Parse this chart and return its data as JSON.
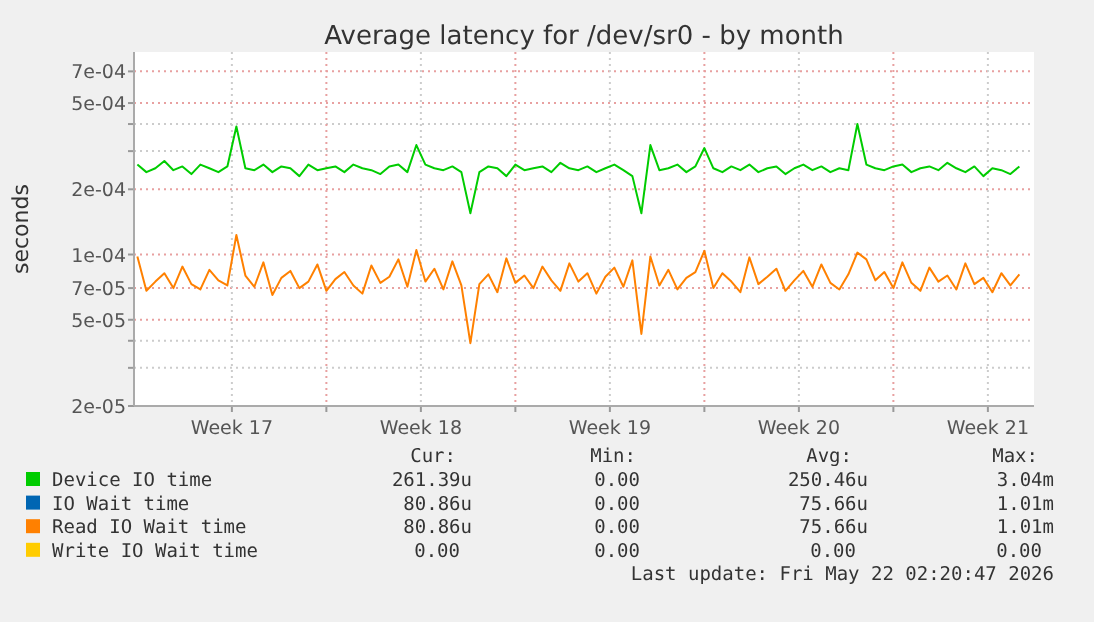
{
  "chart_data": {
    "type": "line",
    "title": "Average latency for /dev/sr0 - by month",
    "ylabel": "seconds",
    "log": true,
    "grid": true,
    "legend": "bottom",
    "marker": "none",
    "line_style": "solid",
    "ylim": [
      2e-05,
      0.00086
    ],
    "yticks": [
      {
        "value": 2e-05,
        "label": "2e-05"
      },
      {
        "value": 3e-05,
        "label": null
      },
      {
        "value": 4e-05,
        "label": null
      },
      {
        "value": 5e-05,
        "label": "5e-05"
      },
      {
        "value": 7e-05,
        "label": "7e-05"
      },
      {
        "value": 0.0001,
        "label": "1e-04"
      },
      {
        "value": 0.0002,
        "label": "2e-04"
      },
      {
        "value": 0.0003,
        "label": null
      },
      {
        "value": 0.0004,
        "label": null
      },
      {
        "value": 0.0005,
        "label": "5e-04"
      },
      {
        "value": 0.0007,
        "label": "7e-04"
      }
    ],
    "xlim": [
      "2026-04-19T21:00",
      "2026-05-23T05:00"
    ],
    "xticks": [
      {
        "value": "2026-04-23T12:00",
        "label": "Week 17"
      },
      {
        "value": "2026-04-27",
        "label": null
      },
      {
        "value": "2026-04-30T12:00",
        "label": "Week 18"
      },
      {
        "value": "2026-05-04",
        "label": null
      },
      {
        "value": "2026-05-07T12:00",
        "label": "Week 19"
      },
      {
        "value": "2026-05-11",
        "label": null
      },
      {
        "value": "2026-05-14T12:00",
        "label": "Week 20"
      },
      {
        "value": "2026-05-18",
        "label": null
      },
      {
        "value": "2026-05-21T12:00",
        "label": "Week 21"
      }
    ],
    "x": [
      "2026-04-20T00:00",
      "2026-04-20T08:00",
      "2026-04-20T16:00",
      "2026-04-21T00:00",
      "2026-04-21T08:00",
      "2026-04-21T16:00",
      "2026-04-22T00:00",
      "2026-04-22T08:00",
      "2026-04-22T16:00",
      "2026-04-23T00:00",
      "2026-04-23T08:00",
      "2026-04-23T16:00",
      "2026-04-24T00:00",
      "2026-04-24T08:00",
      "2026-04-24T16:00",
      "2026-04-25T00:00",
      "2026-04-25T08:00",
      "2026-04-25T16:00",
      "2026-04-26T00:00",
      "2026-04-26T08:00",
      "2026-04-26T16:00",
      "2026-04-27T00:00",
      "2026-04-27T08:00",
      "2026-04-27T16:00",
      "2026-04-28T00:00",
      "2026-04-28T08:00",
      "2026-04-28T16:00",
      "2026-04-29T00:00",
      "2026-04-29T08:00",
      "2026-04-29T16:00",
      "2026-04-30T00:00",
      "2026-04-30T08:00",
      "2026-04-30T16:00",
      "2026-05-01T00:00",
      "2026-05-01T08:00",
      "2026-05-01T16:00",
      "2026-05-02T00:00",
      "2026-05-02T08:00",
      "2026-05-02T16:00",
      "2026-05-03T00:00",
      "2026-05-03T08:00",
      "2026-05-03T16:00",
      "2026-05-04T00:00",
      "2026-05-04T08:00",
      "2026-05-04T16:00",
      "2026-05-05T00:00",
      "2026-05-05T08:00",
      "2026-05-05T16:00",
      "2026-05-06T00:00",
      "2026-05-06T08:00",
      "2026-05-06T16:00",
      "2026-05-07T00:00",
      "2026-05-07T08:00",
      "2026-05-07T16:00",
      "2026-05-08T00:00",
      "2026-05-08T08:00",
      "2026-05-08T16:00",
      "2026-05-09T00:00",
      "2026-05-09T08:00",
      "2026-05-09T16:00",
      "2026-05-10T00:00",
      "2026-05-10T08:00",
      "2026-05-10T16:00",
      "2026-05-11T00:00",
      "2026-05-11T08:00",
      "2026-05-11T16:00",
      "2026-05-12T00:00",
      "2026-05-12T08:00",
      "2026-05-12T16:00",
      "2026-05-13T00:00",
      "2026-05-13T08:00",
      "2026-05-13T16:00",
      "2026-05-14T00:00",
      "2026-05-14T08:00",
      "2026-05-14T16:00",
      "2026-05-15T00:00",
      "2026-05-15T08:00",
      "2026-05-15T16:00",
      "2026-05-16T00:00",
      "2026-05-16T08:00",
      "2026-05-16T16:00",
      "2026-05-17T00:00",
      "2026-05-17T08:00",
      "2026-05-17T16:00",
      "2026-05-18T00:00",
      "2026-05-18T08:00",
      "2026-05-18T16:00",
      "2026-05-19T00:00",
      "2026-05-19T08:00",
      "2026-05-19T16:00",
      "2026-05-20T00:00",
      "2026-05-20T08:00",
      "2026-05-20T16:00",
      "2026-05-21T00:00",
      "2026-05-21T08:00",
      "2026-05-21T16:00",
      "2026-05-22T00:00",
      "2026-05-22T08:00",
      "2026-05-22T16:00"
    ],
    "series": [
      {
        "name": "Device IO time",
        "color": "#00cc00",
        "values": [
          0.00026,
          0.00024,
          0.00025,
          0.00027,
          0.000245,
          0.000255,
          0.000235,
          0.00026,
          0.00025,
          0.00024,
          0.000255,
          0.00039,
          0.00025,
          0.000245,
          0.00026,
          0.00024,
          0.000255,
          0.00025,
          0.00023,
          0.00026,
          0.000245,
          0.00025,
          0.000255,
          0.00024,
          0.00026,
          0.00025,
          0.000245,
          0.000235,
          0.000255,
          0.00026,
          0.00024,
          0.00032,
          0.00026,
          0.00025,
          0.000245,
          0.000255,
          0.00024,
          0.000155,
          0.00024,
          0.000255,
          0.00025,
          0.00023,
          0.00026,
          0.000245,
          0.00025,
          0.000255,
          0.00024,
          0.000265,
          0.00025,
          0.000245,
          0.000255,
          0.00024,
          0.00025,
          0.00026,
          0.000245,
          0.00023,
          0.000155,
          0.00032,
          0.000245,
          0.00025,
          0.00026,
          0.00024,
          0.000255,
          0.00031,
          0.00025,
          0.00024,
          0.000255,
          0.000245,
          0.00026,
          0.00024,
          0.00025,
          0.000255,
          0.000235,
          0.00025,
          0.00026,
          0.000245,
          0.000255,
          0.00024,
          0.00025,
          0.000245,
          0.0004,
          0.00026,
          0.00025,
          0.000245,
          0.000255,
          0.00026,
          0.00024,
          0.00025,
          0.000255,
          0.000245,
          0.000265,
          0.00025,
          0.00024,
          0.000255,
          0.00023,
          0.00025,
          0.000245,
          0.000235,
          0.000255
        ]
      },
      {
        "name": "IO Wait time",
        "color": "#0066b3",
        "values": [
          null,
          null,
          null,
          null,
          null,
          null,
          null,
          null,
          null,
          null,
          null,
          null,
          null,
          null,
          null,
          null,
          null,
          null,
          null,
          null,
          null,
          null,
          null,
          null,
          null,
          null,
          null,
          null,
          null,
          null,
          null,
          null,
          null,
          null,
          null,
          null,
          null,
          null,
          null,
          null,
          null,
          null,
          null,
          null,
          null,
          null,
          null,
          null,
          null,
          null,
          null,
          null,
          null,
          null,
          null,
          null,
          null,
          null,
          null,
          null,
          null,
          null,
          null,
          null,
          null,
          null,
          null,
          null,
          null,
          null,
          null,
          null,
          null,
          null,
          null,
          null,
          null,
          null,
          null,
          null,
          null,
          null,
          null,
          null,
          null,
          null,
          null,
          null,
          null,
          null,
          null,
          null,
          null,
          null,
          null,
          null,
          null,
          null,
          null
        ]
      },
      {
        "name": "Read IO Wait time",
        "color": "#ff8000",
        "values": [
          9.8e-05,
          6.8e-05,
          7.5e-05,
          8.2e-05,
          7e-05,
          8.8e-05,
          7.3e-05,
          6.9e-05,
          8.5e-05,
          7.6e-05,
          7.2e-05,
          0.000123,
          8e-05,
          7.1e-05,
          9.2e-05,
          6.5e-05,
          7.8e-05,
          8.4e-05,
          7e-05,
          7.5e-05,
          9e-05,
          6.8e-05,
          7.7e-05,
          8.3e-05,
          7.2e-05,
          6.6e-05,
          8.9e-05,
          7.4e-05,
          7.9e-05,
          9.5e-05,
          7.1e-05,
          0.000105,
          7.5e-05,
          8.6e-05,
          6.9e-05,
          9.3e-05,
          7.2e-05,
          3.9e-05,
          7.3e-05,
          8.1e-05,
          6.7e-05,
          9.6e-05,
          7.4e-05,
          8e-05,
          7e-05,
          8.8e-05,
          7.6e-05,
          6.8e-05,
          9.1e-05,
          7.5e-05,
          8.2e-05,
          6.6e-05,
          7.9e-05,
          8.7e-05,
          7.1e-05,
          9.4e-05,
          4.3e-05,
          9.8e-05,
          7.2e-05,
          8.5e-05,
          6.9e-05,
          7.8e-05,
          8.3e-05,
          0.000104,
          7e-05,
          8.2e-05,
          7.5e-05,
          6.7e-05,
          9.7e-05,
          7.3e-05,
          7.9e-05,
          8.6e-05,
          6.8e-05,
          7.6e-05,
          8.4e-05,
          7.1e-05,
          9e-05,
          7.4e-05,
          6.9e-05,
          8.1e-05,
          0.000102,
          9.5e-05,
          7.6e-05,
          8.3e-05,
          7e-05,
          9.2e-05,
          7.4e-05,
          6.8e-05,
          8.7e-05,
          7.5e-05,
          8e-05,
          6.9e-05,
          9.1e-05,
          7.3e-05,
          7.8e-05,
          6.7e-05,
          8.2e-05,
          7.2e-05,
          8.1e-05
        ]
      },
      {
        "name": "Write IO Wait time",
        "color": "#ffcc00",
        "values": [
          null,
          null,
          null,
          null,
          null,
          null,
          null,
          null,
          null,
          null,
          null,
          null,
          null,
          null,
          null,
          null,
          null,
          null,
          null,
          null,
          null,
          null,
          null,
          null,
          null,
          null,
          null,
          null,
          null,
          null,
          null,
          null,
          null,
          null,
          null,
          null,
          null,
          null,
          null,
          null,
          null,
          null,
          null,
          null,
          null,
          null,
          null,
          null,
          null,
          null,
          null,
          null,
          null,
          null,
          null,
          null,
          null,
          null,
          null,
          null,
          null,
          null,
          null,
          null,
          null,
          null,
          null,
          null,
          null,
          null,
          null,
          null,
          null,
          null,
          null,
          null,
          null,
          null,
          null,
          null,
          null,
          null,
          null,
          null,
          null,
          null,
          null,
          null,
          null,
          null,
          null,
          null,
          null,
          null,
          null,
          null,
          null,
          null,
          null
        ]
      }
    ],
    "annotations": [
      "Cur:",
      "Min:",
      "Avg:",
      "Max:",
      "261.39u",
      "0.00",
      "250.46u",
      "3.04m",
      "80.86u",
      "0.00",
      "75.66u",
      "1.01m",
      "80.86u",
      "0.00",
      "75.66u",
      "1.01m",
      "0.00",
      "0.00",
      "0.00",
      "0.00",
      "Last update: Fri May 22 02:20:47 2026"
    ]
  }
}
